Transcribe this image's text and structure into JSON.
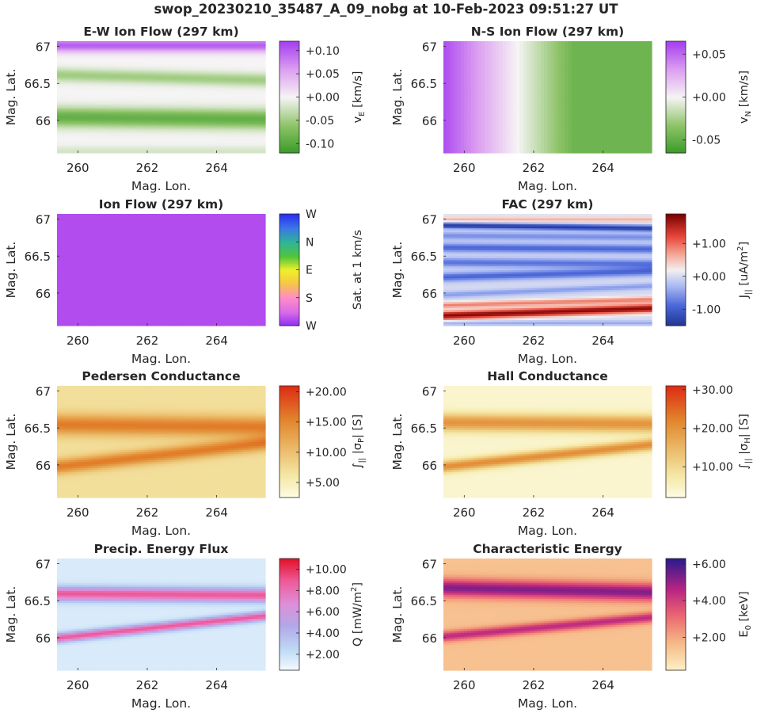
{
  "figure": {
    "title": "swop_20230210_35487_A_09_nobg at 10-Feb-2023 09:51:27 UT"
  },
  "chart_data": [
    {
      "type": "heatmap",
      "title": "E-W Ion Flow (297 km)",
      "xlabel": "Mag. Lon.",
      "ylabel": "Mag. Lat.",
      "xlim": [
        259.4,
        265.4
      ],
      "ylim": [
        65.56,
        67.07
      ],
      "xticks": [
        260,
        262,
        264
      ],
      "xtick_labels": [
        "260",
        "262",
        "264"
      ],
      "yticks": [
        66,
        66.5,
        67
      ],
      "ytick_labels": [
        "66",
        "66.5",
        "67"
      ],
      "colorbar": {
        "label": "v",
        "label_sub": "E",
        "label_unit": " [km/s]",
        "lim": [
          -0.12,
          0.12
        ],
        "colormap": "PRGn",
        "ticks": [
          -0.1,
          -0.05,
          0,
          0.05,
          0.1
        ],
        "tick_labels": [
          "-0.10",
          "-0.05",
          "+0.00",
          "+0.05",
          "+0.10"
        ]
      },
      "field": {
        "base": 0.0,
        "bands": [
          {
            "lat": [
              67.02,
              67.02
            ],
            "amp": 0.1,
            "width": 0.09
          },
          {
            "lat": [
              66.62,
              66.55
            ],
            "amp": -0.05,
            "width": 0.09
          },
          {
            "lat": [
              66.05,
              66.02
            ],
            "amp": -0.09,
            "width": 0.13
          },
          {
            "lat": [
              65.58,
              65.58
            ],
            "amp": -0.02,
            "width": 0.08
          }
        ]
      }
    },
    {
      "type": "heatmap",
      "title": "N-S Ion Flow (297 km)",
      "xlabel": "Mag. Lon.",
      "ylabel": "Mag. Lat.",
      "xlim": [
        259.4,
        265.4
      ],
      "ylim": [
        65.56,
        67.07
      ],
      "xticks": [
        260,
        262,
        264
      ],
      "xtick_labels": [
        "260",
        "262",
        "264"
      ],
      "yticks": [
        66,
        66.5,
        67
      ],
      "ytick_labels": [
        "66",
        "66.5",
        "67"
      ],
      "colorbar": {
        "label": "v",
        "label_sub": "N",
        "label_unit": " [km/s]",
        "lim": [
          -0.065,
          0.065
        ],
        "colormap": "PRGn",
        "ticks": [
          -0.05,
          0,
          0.05
        ],
        "tick_labels": [
          "-0.05",
          "+0.00",
          "+0.05"
        ]
      },
      "field": {
        "base": 0.0,
        "xgrad": [
          0.06,
          -0.045
        ],
        "bands": []
      }
    },
    {
      "type": "heatmap",
      "title": "Ion Flow (297 km)",
      "xlabel": "Mag. Lon.",
      "ylabel": "Mag. Lat.",
      "xlim": [
        259.4,
        265.4
      ],
      "ylim": [
        65.56,
        67.07
      ],
      "xticks": [
        260,
        262,
        264
      ],
      "xtick_labels": [
        "260",
        "262",
        "264"
      ],
      "yticks": [
        66,
        66.5,
        67
      ],
      "ytick_labels": [
        "66",
        "66.5",
        "67"
      ],
      "colorbar": {
        "label": "Sat. at 1 km/s",
        "label_sub": "",
        "label_unit": "",
        "lim": [
          0,
          1
        ],
        "colormap": "direction",
        "ticks": [
          0,
          0.25,
          0.5,
          0.75,
          1
        ],
        "tick_labels": [
          "W",
          "S",
          "E",
          "N",
          "W"
        ]
      },
      "field": {
        "base": 0.06,
        "bands": []
      }
    },
    {
      "type": "heatmap",
      "title": "FAC (297 km)",
      "xlabel": "Mag. Lon.",
      "ylabel": "Mag. Lat.",
      "xlim": [
        259.4,
        265.4
      ],
      "ylim": [
        65.56,
        67.07
      ],
      "xticks": [
        260,
        262,
        264
      ],
      "xtick_labels": [
        "260",
        "262",
        "264"
      ],
      "yticks": [
        66,
        66.5,
        67
      ],
      "ytick_labels": [
        "66",
        "66.5",
        "67"
      ],
      "colorbar": {
        "label": "J",
        "label_sub": "||",
        "label_unit": " [uA/m",
        "label_sup": "2",
        "label_tail": "]",
        "lim": [
          -1.5,
          1.9
        ],
        "colormap": "RdBu",
        "ticks": [
          -1,
          0,
          1
        ],
        "tick_labels": [
          "-1.00",
          "+0.00",
          "+1.00"
        ]
      },
      "field": {
        "base": 0.0,
        "bands": [
          {
            "lat": [
              67.0,
              67.0
            ],
            "amp": 0.6,
            "width": 0.04
          },
          {
            "lat": [
              66.92,
              66.88
            ],
            "amp": -1.4,
            "width": 0.04
          },
          {
            "lat": [
              66.78,
              66.76
            ],
            "amp": -0.6,
            "width": 0.05
          },
          {
            "lat": [
              66.62,
              66.6
            ],
            "amp": -0.9,
            "width": 0.06
          },
          {
            "lat": [
              66.42,
              66.4
            ],
            "amp": -0.8,
            "width": 0.06
          },
          {
            "lat": [
              66.22,
              66.3
            ],
            "amp": -0.9,
            "width": 0.06
          },
          {
            "lat": [
              65.98,
              66.1
            ],
            "amp": -0.5,
            "width": 0.04
          },
          {
            "lat": [
              65.84,
              65.92
            ],
            "amp": 0.9,
            "width": 0.04
          },
          {
            "lat": [
              65.7,
              65.8
            ],
            "amp": 1.8,
            "width": 0.06
          },
          {
            "lat": [
              65.6,
              65.6
            ],
            "amp": -0.4,
            "width": 0.03
          }
        ]
      }
    },
    {
      "type": "heatmap",
      "title": "Pedersen Conductance",
      "xlabel": "Mag. Lon.",
      "ylabel": "Mag. Lat.",
      "xlim": [
        259.4,
        265.4
      ],
      "ylim": [
        65.56,
        67.07
      ],
      "xticks": [
        260,
        262,
        264
      ],
      "xtick_labels": [
        "260",
        "262",
        "264"
      ],
      "yticks": [
        66,
        66.5,
        67
      ],
      "ytick_labels": [
        "66",
        "66.5",
        "67"
      ],
      "colorbar": {
        "label": "∫",
        "label_sub": "||",
        "label_unit": " |σ",
        "label_sup2": "P",
        "label_tail": "| [S]",
        "lim": [
          2.5,
          21
        ],
        "colormap": "YlOrRd",
        "ticks": [
          5,
          10,
          15,
          20
        ],
        "tick_labels": [
          "+5.00",
          "+10.00",
          "+15.00",
          "+20.00"
        ]
      },
      "field": {
        "base": 7,
        "bands": [
          {
            "lat": [
              66.55,
              66.52
            ],
            "amp": 9,
            "width": 0.14
          },
          {
            "lat": [
              65.98,
              66.3
            ],
            "amp": 9,
            "width": 0.1
          }
        ]
      }
    },
    {
      "type": "heatmap",
      "title": "Hall Conductance",
      "xlabel": "Mag. Lon.",
      "ylabel": "Mag. Lat.",
      "xlim": [
        259.4,
        265.4
      ],
      "ylim": [
        65.56,
        67.07
      ],
      "xticks": [
        260,
        262,
        264
      ],
      "xtick_labels": [
        "260",
        "262",
        "264"
      ],
      "yticks": [
        66,
        66.5,
        67
      ],
      "ytick_labels": [
        "66",
        "66.5",
        "67"
      ],
      "colorbar": {
        "label": "∫",
        "label_sub": "||",
        "label_unit": " |σ",
        "label_sup2": "H",
        "label_tail": "| [S]",
        "lim": [
          2,
          31
        ],
        "colormap": "YlOrRd",
        "ticks": [
          10,
          20,
          30
        ],
        "tick_labels": [
          "+10.00",
          "+20.00",
          "+30.00"
        ]
      },
      "field": {
        "base": 4,
        "bands": [
          {
            "lat": [
              66.58,
              66.56
            ],
            "amp": 16,
            "width": 0.12
          },
          {
            "lat": [
              65.98,
              66.28
            ],
            "amp": 17,
            "width": 0.08
          }
        ]
      }
    },
    {
      "type": "heatmap",
      "title": "Precip. Energy Flux",
      "xlabel": "Mag. Lon.",
      "ylabel": "Mag. Lat.",
      "xlim": [
        259.4,
        265.4
      ],
      "ylim": [
        65.56,
        67.07
      ],
      "xticks": [
        260,
        262,
        264
      ],
      "xtick_labels": [
        "260",
        "262",
        "264"
      ],
      "yticks": [
        66,
        66.5,
        67
      ],
      "ytick_labels": [
        "66",
        "66.5",
        "67"
      ],
      "colorbar": {
        "label": "Q [mW/m",
        "label_sub": "",
        "label_unit": "",
        "label_sup": "2",
        "label_tail": "]",
        "lim": [
          0.5,
          11
        ],
        "colormap": "BuPuRd",
        "ticks": [
          2,
          4,
          6,
          8,
          10
        ],
        "tick_labels": [
          "+2.00",
          "+4.00",
          "+6.00",
          "+8.00",
          "+10.00"
        ]
      },
      "field": {
        "base": 1.5,
        "bands": [
          {
            "lat": [
              66.6,
              66.58
            ],
            "amp": 7.5,
            "width": 0.09
          },
          {
            "lat": [
              66.0,
              66.3
            ],
            "amp": 7.5,
            "width": 0.06
          }
        ]
      }
    },
    {
      "type": "heatmap",
      "title": "Characteristic Energy",
      "xlabel": "Mag. Lon.",
      "ylabel": "Mag. Lat.",
      "xlim": [
        259.4,
        265.4
      ],
      "ylim": [
        65.56,
        67.07
      ],
      "xticks": [
        260,
        262,
        264
      ],
      "xtick_labels": [
        "260",
        "262",
        "264"
      ],
      "yticks": [
        66,
        66.5,
        67
      ],
      "ytick_labels": [
        "66",
        "66.5",
        "67"
      ],
      "colorbar": {
        "label": "E",
        "label_sub": "0",
        "label_unit": " [keV]",
        "lim": [
          0.2,
          6.3
        ],
        "colormap": "Magma",
        "ticks": [
          2,
          4,
          6
        ],
        "tick_labels": [
          "+2.00",
          "+4.00",
          "+6.00"
        ]
      },
      "field": {
        "base": 1.5,
        "bands": [
          {
            "lat": [
              66.68,
              66.62
            ],
            "amp": 3.8,
            "width": 0.12
          },
          {
            "lat": [
              66.02,
              66.28
            ],
            "amp": 3.0,
            "width": 0.07
          }
        ]
      }
    }
  ]
}
